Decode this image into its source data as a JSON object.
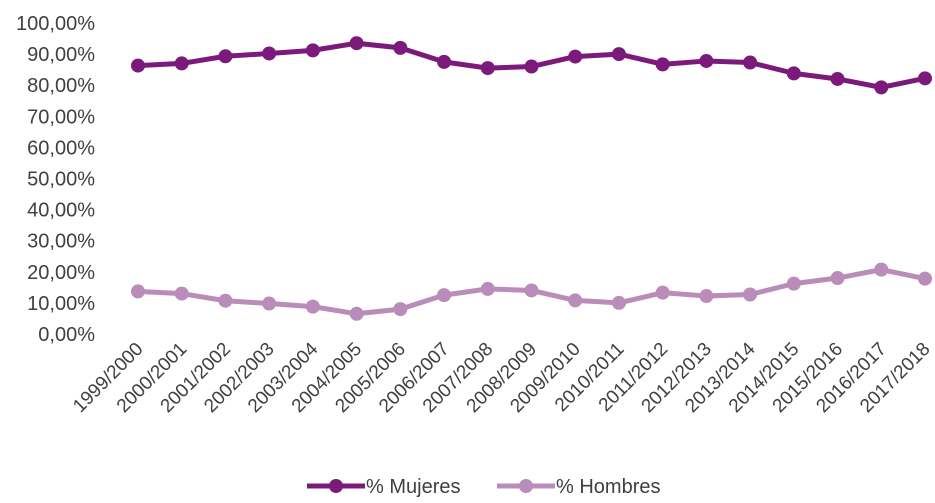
{
  "chart_data": {
    "type": "line",
    "x": [
      "1999/2000",
      "2000/2001",
      "2001/2002",
      "2002/2003",
      "2003/2004",
      "2004/2005",
      "2005/2006",
      "2006/2007",
      "2007/2008",
      "2008/2009",
      "2009/2010",
      "2010/2011",
      "2011/2012",
      "2012/2013",
      "2013/2014",
      "2014/2015",
      "2015/2016",
      "2016/2017",
      "2017/2018"
    ],
    "series": [
      {
        "name": "% Mujeres",
        "color": "#7b1a7b",
        "values": [
          86.3,
          87.0,
          89.3,
          90.2,
          91.2,
          93.5,
          92.0,
          87.5,
          85.5,
          86.0,
          89.2,
          90.0,
          86.7,
          87.8,
          87.3,
          83.8,
          82.0,
          79.3,
          82.2
        ]
      },
      {
        "name": "% Hombres",
        "color": "#b98cb9",
        "values": [
          13.7,
          13.0,
          10.7,
          9.8,
          8.8,
          6.5,
          8.0,
          12.5,
          14.5,
          14.0,
          10.8,
          10.0,
          13.3,
          12.2,
          12.7,
          16.2,
          18.0,
          20.7,
          17.8
        ]
      }
    ],
    "y_ticks": [
      "0,00%",
      "10,00%",
      "20,00%",
      "30,00%",
      "40,00%",
      "50,00%",
      "60,00%",
      "70,00%",
      "80,00%",
      "90,00%",
      "100,00%"
    ],
    "ylim": [
      0,
      100
    ],
    "grid": false,
    "legend": "bottom"
  }
}
